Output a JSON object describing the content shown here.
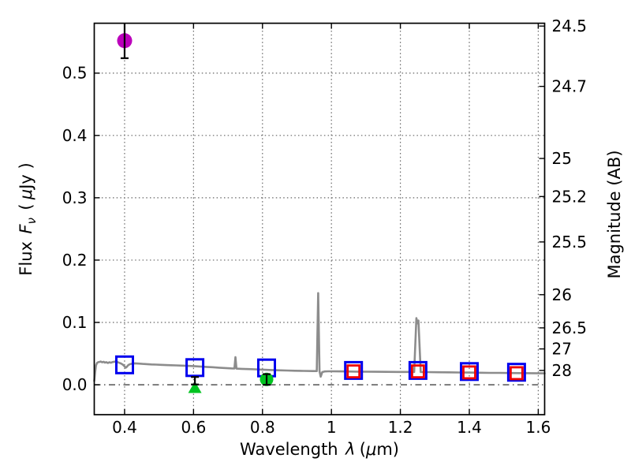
{
  "chart_data": {
    "type": "line",
    "title": "",
    "xlabel": "Wavelength λ (μm)",
    "xlabel_parts": {
      "prefix": "Wavelength",
      "lambda": "λ",
      "open": "(",
      "mu": "μ",
      "rest": "m)"
    },
    "ylabel_left": "Flux Fν ( μJy )",
    "ylabel_left_parts": {
      "word": "Flux",
      "F": "F",
      "nu": "ν",
      "open": "(",
      "mu": "μ",
      "jy": "Jy )"
    },
    "ylabel_right": "Magnitude (AB)",
    "xlim": [
      0.312,
      1.6185
    ],
    "ylim": [
      -0.048,
      0.58
    ],
    "x_ticks": [
      0.4,
      0.6,
      0.8,
      1.0,
      1.2,
      1.4,
      1.6
    ],
    "x_tick_labels": [
      "0.4",
      "0.6",
      "0.8",
      "1",
      "1.2",
      "1.4",
      "1.6"
    ],
    "y_ticks_left": [
      0.0,
      0.1,
      0.2,
      0.3,
      0.4,
      0.5
    ],
    "y_tick_labels_left": [
      "0.0",
      "0.1",
      "0.2",
      "0.3",
      "0.4",
      "0.5"
    ],
    "mag_zeropoint": 23.9,
    "y_ticks_right": [
      {
        "mag": 24.5,
        "label": "24.5"
      },
      {
        "mag": 24.7,
        "label": "24.7"
      },
      {
        "mag": 25.0,
        "label": "25"
      },
      {
        "mag": 25.2,
        "label": "25.2"
      },
      {
        "mag": 25.5,
        "label": "25.5"
      },
      {
        "mag": 26.0,
        "label": "26"
      },
      {
        "mag": 26.5,
        "label": "26.5"
      },
      {
        "mag": 27.0,
        "label": "27"
      },
      {
        "mag": 28.0,
        "label": "28"
      }
    ],
    "grid": {
      "shown": true,
      "style": "dotted",
      "zero_line_style": "dash-dot",
      "color": "#666666"
    },
    "legend": null,
    "series": [
      {
        "name": "model-spectrum",
        "type": "line",
        "color": "#8c8c8c",
        "linewidth": 2.6,
        "points": [
          [
            0.312,
            0.006
          ],
          [
            0.3145,
            0.02
          ],
          [
            0.317,
            0.031
          ],
          [
            0.32,
            0.035
          ],
          [
            0.3235,
            0.0362
          ],
          [
            0.327,
            0.0366
          ],
          [
            0.331,
            0.0373
          ],
          [
            0.335,
            0.036
          ],
          [
            0.339,
            0.0369
          ],
          [
            0.343,
            0.0355
          ],
          [
            0.347,
            0.0363
          ],
          [
            0.3515,
            0.035
          ],
          [
            0.356,
            0.0361
          ],
          [
            0.3605,
            0.0353
          ],
          [
            0.365,
            0.0364
          ],
          [
            0.37,
            0.0369
          ],
          [
            0.375,
            0.0373
          ],
          [
            0.38,
            0.0362
          ],
          [
            0.385,
            0.0351
          ],
          [
            0.39,
            0.034
          ],
          [
            0.395,
            0.0322
          ],
          [
            0.399,
            0.03
          ],
          [
            0.4035,
            0.0274
          ],
          [
            0.407,
            0.029
          ],
          [
            0.411,
            0.0318
          ],
          [
            0.416,
            0.0331
          ],
          [
            0.422,
            0.0339
          ],
          [
            0.43,
            0.0343
          ],
          [
            0.44,
            0.0339
          ],
          [
            0.452,
            0.0334
          ],
          [
            0.465,
            0.0331
          ],
          [
            0.478,
            0.0326
          ],
          [
            0.492,
            0.0323
          ],
          [
            0.506,
            0.0319
          ],
          [
            0.52,
            0.0316
          ],
          [
            0.535,
            0.0313
          ],
          [
            0.55,
            0.0311
          ],
          [
            0.566,
            0.0307
          ],
          [
            0.582,
            0.0303
          ],
          [
            0.6,
            0.0299
          ],
          [
            0.618,
            0.0293
          ],
          [
            0.636,
            0.0287
          ],
          [
            0.655,
            0.0281
          ],
          [
            0.674,
            0.0274
          ],
          [
            0.694,
            0.0267
          ],
          [
            0.71,
            0.0263
          ],
          [
            0.7185,
            0.0261
          ],
          [
            0.7215,
            0.0443
          ],
          [
            0.7245,
            0.0259
          ],
          [
            0.74,
            0.0255
          ],
          [
            0.76,
            0.0251
          ],
          [
            0.78,
            0.0247
          ],
          [
            0.8,
            0.0242
          ],
          [
            0.82,
            0.0237
          ],
          [
            0.845,
            0.0232
          ],
          [
            0.87,
            0.0228
          ],
          [
            0.895,
            0.0225
          ],
          [
            0.92,
            0.0222
          ],
          [
            0.945,
            0.022
          ],
          [
            0.9575,
            0.0219
          ],
          [
            0.9615,
            0.147
          ],
          [
            0.9655,
            0.0217
          ],
          [
            0.969,
            0.013
          ],
          [
            0.9735,
            0.0203
          ],
          [
            0.98,
            0.0213
          ],
          [
            0.99,
            0.0216
          ],
          [
            1.0,
            0.0216
          ],
          [
            1.02,
            0.0215
          ],
          [
            1.045,
            0.0213
          ],
          [
            1.07,
            0.0211
          ],
          [
            1.1,
            0.0209
          ],
          [
            1.13,
            0.0208
          ],
          [
            1.16,
            0.0207
          ],
          [
            1.19,
            0.0206
          ],
          [
            1.22,
            0.0205
          ],
          [
            1.24,
            0.0204
          ],
          [
            1.2465,
            0.107
          ],
          [
            1.2495,
            0.0985
          ],
          [
            1.2525,
            0.103
          ],
          [
            1.259,
            0.0204
          ],
          [
            1.28,
            0.0203
          ],
          [
            1.31,
            0.0201
          ],
          [
            1.34,
            0.0199
          ],
          [
            1.37,
            0.0197
          ],
          [
            1.4,
            0.0195
          ],
          [
            1.43,
            0.0193
          ],
          [
            1.46,
            0.0191
          ],
          [
            1.49,
            0.019
          ],
          [
            1.52,
            0.0188
          ],
          [
            1.55,
            0.0187
          ],
          [
            1.58,
            0.0185
          ],
          [
            1.6185,
            0.0183
          ]
        ]
      },
      {
        "name": "blue-open-squares",
        "type": "scatter",
        "marker": "open-square",
        "color": "#0000ee",
        "marker_size": 21,
        "stroke_width": 3,
        "points": [
          [
            0.4,
            0.032
          ],
          [
            0.604,
            0.0275
          ],
          [
            0.812,
            0.027
          ],
          [
            1.064,
            0.023
          ],
          [
            1.251,
            0.023
          ],
          [
            1.4,
            0.0212
          ],
          [
            1.537,
            0.02
          ]
        ]
      },
      {
        "name": "red-open-squares",
        "type": "scatter",
        "marker": "open-square",
        "color": "#ee0000",
        "marker_size": 15,
        "stroke_width": 2.8,
        "points": [
          [
            1.064,
            0.0215
          ],
          [
            1.251,
            0.0215
          ],
          [
            1.4,
            0.0198
          ],
          [
            1.537,
            0.0185
          ]
        ]
      },
      {
        "name": "magenta-filled-circle",
        "type": "scatter",
        "marker": "filled-circle",
        "color": "#bb00bb",
        "marker_size": 19,
        "points": [
          [
            0.4,
            0.552
          ]
        ],
        "error_bars": [
          {
            "x": 0.4,
            "y_low": 0.524,
            "y_high": 0.58,
            "cap_low": true,
            "cap_high": false
          }
        ]
      },
      {
        "name": "green-filled-circle",
        "type": "scatter",
        "marker": "filled-circle",
        "color": "#00c421",
        "marker_size": 17,
        "points": [
          [
            0.812,
            0.0085
          ]
        ],
        "error_bars": [
          {
            "x": 0.812,
            "y_low": 0.0,
            "y_high": 0.017,
            "cap_low": true,
            "cap_high": true
          }
        ]
      },
      {
        "name": "green-filled-triangle",
        "type": "scatter",
        "marker": "filled-triangle-up",
        "color": "#00c421",
        "marker_size": 17,
        "points": [
          [
            0.604,
            -0.005
          ]
        ],
        "error_bars": [
          {
            "x": 0.604,
            "y_low": 0.0005,
            "y_high": 0.0125,
            "cap_low": true,
            "cap_high": true
          }
        ]
      }
    ],
    "colors": {
      "spectrum": "#8c8c8c",
      "photometry_blue": "#0000ee",
      "photometry_red": "#ee0000",
      "detection_magenta": "#bb00bb",
      "detection_green": "#00c421",
      "axis": "#000000",
      "grid": "#666666",
      "background": "#ffffff"
    }
  }
}
